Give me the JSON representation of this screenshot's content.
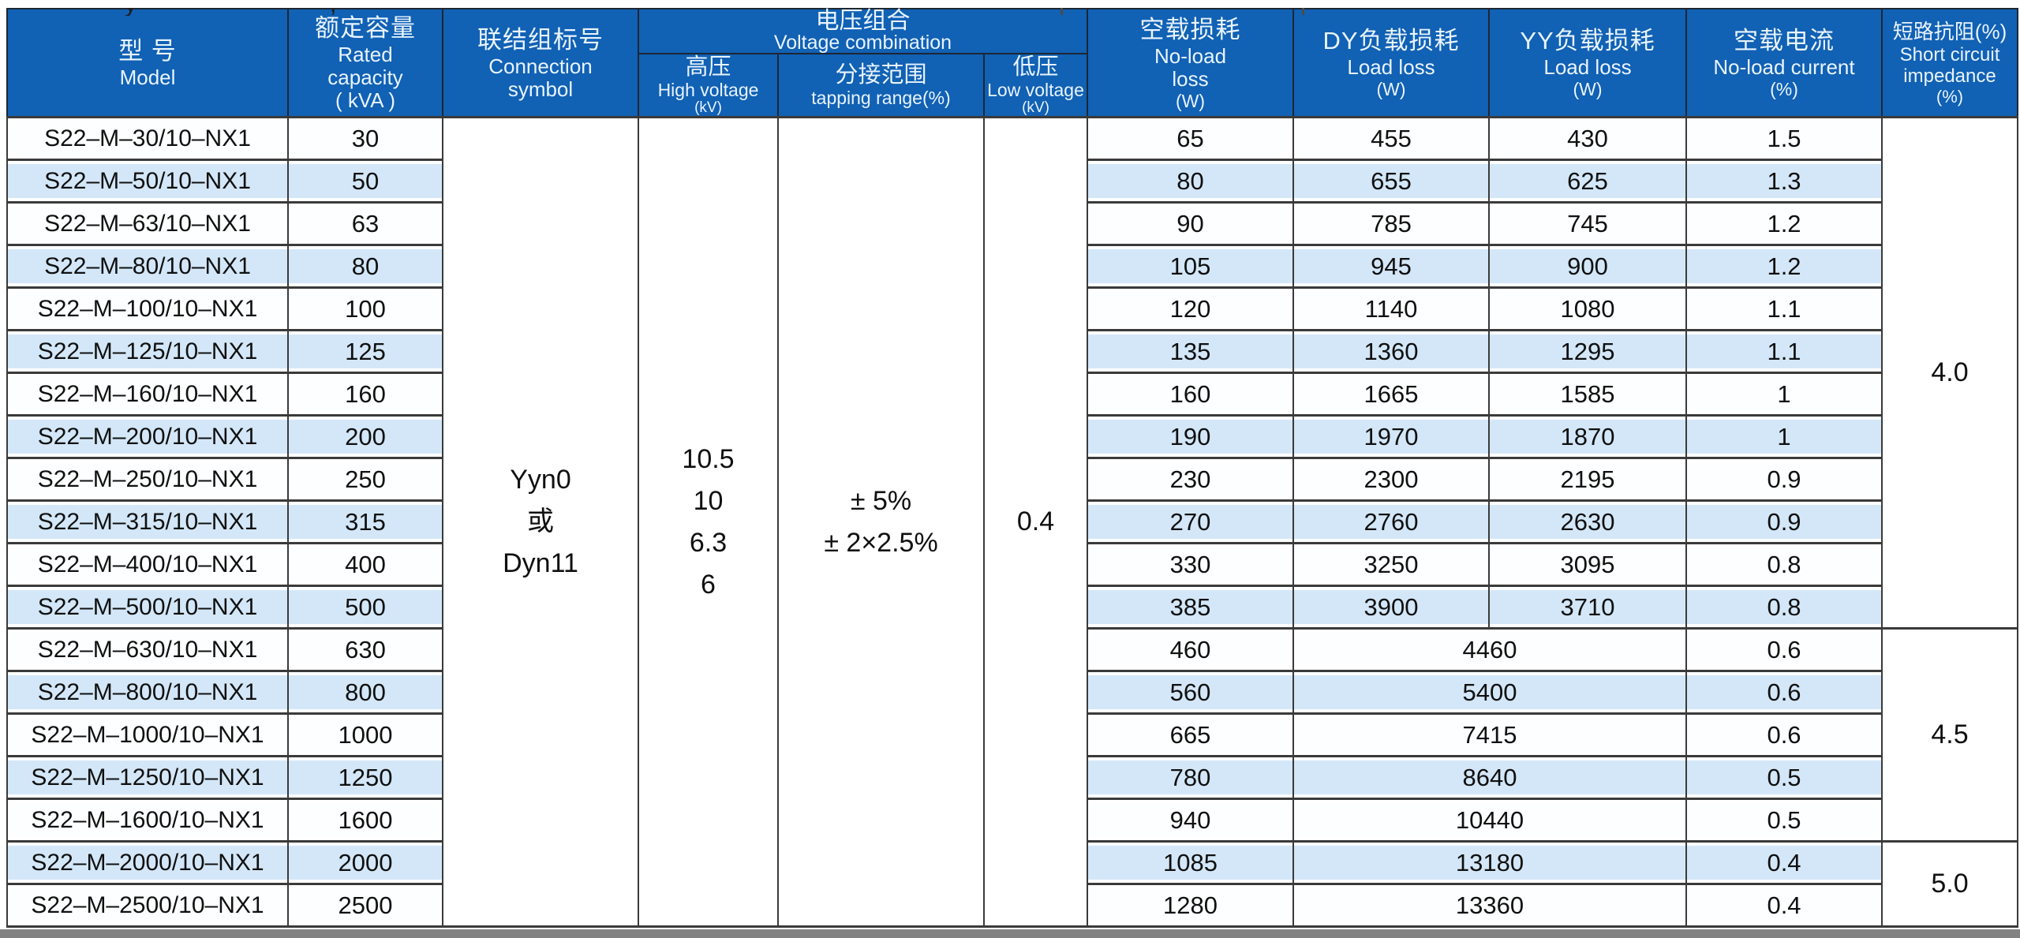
{
  "colors": {
    "header_bg": "#1161b4",
    "header_text": "#e9f4ff",
    "stripe_blue": "#d3e7f8",
    "border": "#3a3a3a",
    "bottom_bar": "#828282"
  },
  "top_fragments": {
    "frag1": "y",
    "frag2": ",",
    "note": "cut-off descenders of a text line above the table"
  },
  "table": {
    "header": {
      "model_zh": "型 号",
      "model_en": "Model",
      "capacity_zh": "额定容量",
      "capacity_en1": "Rated",
      "capacity_en2": "capacity",
      "capacity_unit": "( kVA )",
      "connection_zh": "联结组标号",
      "connection_en1": "Connection",
      "connection_en2": "symbol",
      "voltage_combo_zh": "电压组合",
      "voltage_combo_en": "Voltage combination",
      "hv_zh": "高压",
      "hv_en": "High voltage",
      "hv_unit": "(kV)",
      "tapping_zh": "分接范围",
      "tapping_en": "tapping range(%)",
      "lv_zh": "低压",
      "lv_en": "Low voltage",
      "lv_unit": "(kV)",
      "noload_zh": "空载损耗",
      "noload_en1": "No-load",
      "noload_en2": "loss",
      "noload_unit": "(W)",
      "dy_zh": "DY负载损耗",
      "dy_en": "Load loss",
      "dy_unit": "(W)",
      "yy_zh": "YY负载损耗",
      "yy_en": "Load loss",
      "yy_unit": "(W)",
      "current_zh": "空载电流",
      "current_en": "No-load current",
      "current_unit": "(%)",
      "impedance_zh": "短路抗阻(%)",
      "impedance_en1": "Short circuit",
      "impedance_en2": "impedance",
      "impedance_unit": "(%)"
    },
    "merged_columns": {
      "connection_symbol": [
        "Yyn0",
        "或",
        "Dyn11"
      ],
      "high_voltage": [
        "10.5",
        "10",
        "6.3",
        "6"
      ],
      "tapping_range": [
        "± 5%",
        "± 2×2.5%"
      ],
      "low_voltage": "0.4",
      "impedance_groups": [
        {
          "value": "4.0",
          "row_start": 0,
          "row_count": 12
        },
        {
          "value": "4.5",
          "row_start": 12,
          "row_count": 5
        },
        {
          "value": "5.0",
          "row_start": 17,
          "row_count": 2
        }
      ]
    },
    "rows": [
      {
        "model": "S22–M–30/10–NX1",
        "capacity": "30",
        "no_load_loss": "65",
        "dy_load_loss": "455",
        "yy_load_loss": "430",
        "no_load_current": "1.5"
      },
      {
        "model": "S22–M–50/10–NX1",
        "capacity": "50",
        "no_load_loss": "80",
        "dy_load_loss": "655",
        "yy_load_loss": "625",
        "no_load_current": "1.3"
      },
      {
        "model": "S22–M–63/10–NX1",
        "capacity": "63",
        "no_load_loss": "90",
        "dy_load_loss": "785",
        "yy_load_loss": "745",
        "no_load_current": "1.2"
      },
      {
        "model": "S22–M–80/10–NX1",
        "capacity": "80",
        "no_load_loss": "105",
        "dy_load_loss": "945",
        "yy_load_loss": "900",
        "no_load_current": "1.2"
      },
      {
        "model": "S22–M–100/10–NX1",
        "capacity": "100",
        "no_load_loss": "120",
        "dy_load_loss": "1140",
        "yy_load_loss": "1080",
        "no_load_current": "1.1"
      },
      {
        "model": "S22–M–125/10–NX1",
        "capacity": "125",
        "no_load_loss": "135",
        "dy_load_loss": "1360",
        "yy_load_loss": "1295",
        "no_load_current": "1.1"
      },
      {
        "model": "S22–M–160/10–NX1",
        "capacity": "160",
        "no_load_loss": "160",
        "dy_load_loss": "1665",
        "yy_load_loss": "1585",
        "no_load_current": "1"
      },
      {
        "model": "S22–M–200/10–NX1",
        "capacity": "200",
        "no_load_loss": "190",
        "dy_load_loss": "1970",
        "yy_load_loss": "1870",
        "no_load_current": "1"
      },
      {
        "model": "S22–M–250/10–NX1",
        "capacity": "250",
        "no_load_loss": "230",
        "dy_load_loss": "2300",
        "yy_load_loss": "2195",
        "no_load_current": "0.9"
      },
      {
        "model": "S22–M–315/10–NX1",
        "capacity": "315",
        "no_load_loss": "270",
        "dy_load_loss": "2760",
        "yy_load_loss": "2630",
        "no_load_current": "0.9"
      },
      {
        "model": "S22–M–400/10–NX1",
        "capacity": "400",
        "no_load_loss": "330",
        "dy_load_loss": "3250",
        "yy_load_loss": "3095",
        "no_load_current": "0.8"
      },
      {
        "model": "S22–M–500/10–NX1",
        "capacity": "500",
        "no_load_loss": "385",
        "dy_load_loss": "3900",
        "yy_load_loss": "3710",
        "no_load_current": "0.8"
      },
      {
        "model": "S22–M–630/10–NX1",
        "capacity": "630",
        "no_load_loss": "460",
        "load_loss_combined": "4460",
        "no_load_current": "0.6"
      },
      {
        "model": "S22–M–800/10–NX1",
        "capacity": "800",
        "no_load_loss": "560",
        "load_loss_combined": "5400",
        "no_load_current": "0.6"
      },
      {
        "model": "S22–M–1000/10–NX1",
        "capacity": "1000",
        "no_load_loss": "665",
        "load_loss_combined": "7415",
        "no_load_current": "0.6"
      },
      {
        "model": "S22–M–1250/10–NX1",
        "capacity": "1250",
        "no_load_loss": "780",
        "load_loss_combined": "8640",
        "no_load_current": "0.5"
      },
      {
        "model": "S22–M–1600/10–NX1",
        "capacity": "1600",
        "no_load_loss": "940",
        "load_loss_combined": "10440",
        "no_load_current": "0.5"
      },
      {
        "model": "S22–M–2000/10–NX1",
        "capacity": "2000",
        "no_load_loss": "1085",
        "load_loss_combined": "13180",
        "no_load_current": "0.4"
      },
      {
        "model": "S22–M–2500/10–NX1",
        "capacity": "2500",
        "no_load_loss": "1280",
        "load_loss_combined": "13360",
        "no_load_current": "0.4"
      }
    ]
  }
}
